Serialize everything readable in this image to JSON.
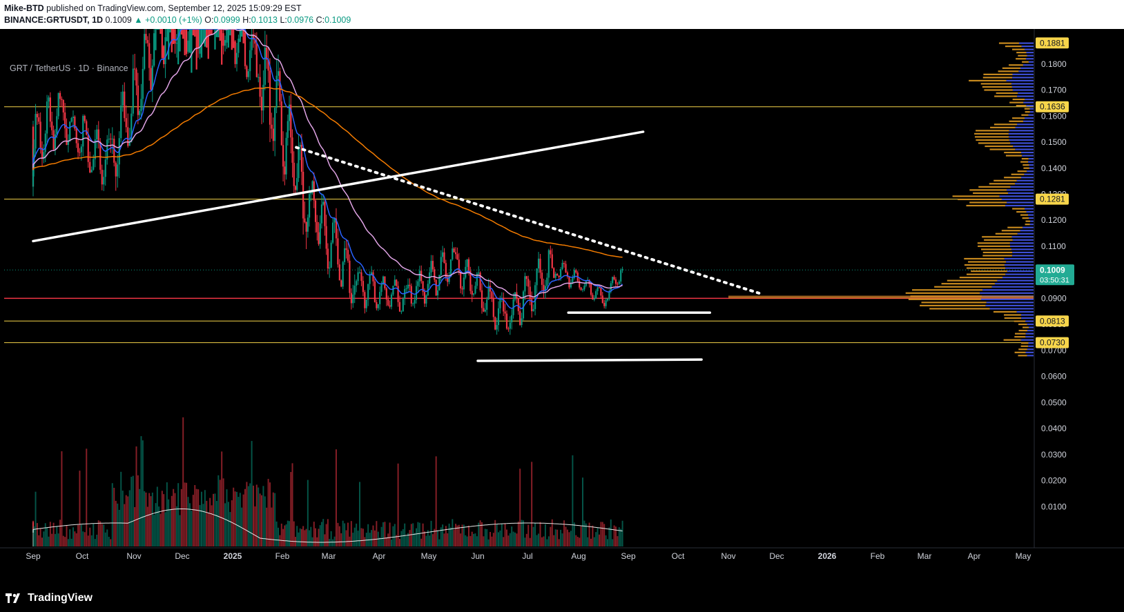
{
  "header": {
    "author": "Mike-BTD",
    "published_text": "published on TradingView.com, September 12, 2025 15:09:29 EST",
    "symbol": "BINANCE:GRTUSDT, 1D",
    "last": "0.1009",
    "change": "▲ +0.0010 (+1%)",
    "o_label": "O:",
    "o": "0.0999",
    "h_label": "H:",
    "h": "0.1013",
    "l_label": "L:",
    "l": "0.0976",
    "c_label": "C:",
    "c": "0.1009"
  },
  "pane_title": "GRT / TetherUS · 1D · Binance",
  "brand": "TradingView",
  "colors": {
    "up": "#089981",
    "down": "#f23645",
    "ema_fast": "#2962ff",
    "ema_mid": "#e1a4e6",
    "ma_slow": "#f57c00",
    "level_yellow": "#f7d54a",
    "level_red": "#f23645",
    "vp_left": "#c88a1e",
    "vp_right": "#3d4fd6",
    "badge_price": "#22ab94"
  },
  "chart_data": {
    "type": "candlestick",
    "symbol": "GRT / TetherUS",
    "interval": "1D",
    "exchange": "Binance",
    "y_axis": {
      "range": [
        0.0,
        0.19
      ],
      "ticks": [
        "0.1800",
        "0.1700",
        "0.1600",
        "0.1500",
        "0.1400",
        "0.1300",
        "0.1200",
        "0.1100",
        "0.1000",
        "0.0900",
        "0.0800",
        "0.0700",
        "0.0600",
        "0.0500",
        "0.0400",
        "0.0300",
        "0.0200",
        "0.0100"
      ]
    },
    "x_axis": {
      "labels": [
        "Sep",
        "Oct",
        "Nov",
        "Dec",
        "2025",
        "Feb",
        "Mar",
        "Apr",
        "May",
        "Jun",
        "Jul",
        "Aug",
        "Sep",
        "Oct",
        "Nov",
        "Dec",
        "2026",
        "Feb",
        "Mar",
        "Apr",
        "May"
      ]
    },
    "price_badges": [
      {
        "label": "0.1881",
        "value": 0.1881,
        "kind": "level"
      },
      {
        "label": "0.1636",
        "value": 0.1636,
        "kind": "level"
      },
      {
        "label": "0.1281",
        "value": 0.1281,
        "kind": "level"
      },
      {
        "label": "0.1009",
        "sublabel": "03:50:31",
        "value": 0.1009,
        "kind": "last"
      },
      {
        "label": "0.0813",
        "value": 0.0813,
        "kind": "level"
      },
      {
        "label": "0.0730",
        "value": 0.073,
        "kind": "level"
      }
    ],
    "horizontal_levels": [
      {
        "value": 0.1636,
        "color": "yellow"
      },
      {
        "value": 0.1281,
        "color": "yellow"
      },
      {
        "value": 0.09,
        "color": "red"
      },
      {
        "value": 0.0813,
        "color": "yellow"
      },
      {
        "value": 0.073,
        "color": "yellow"
      }
    ],
    "monthly_closes": [
      {
        "month": "Sep 2024",
        "open": 0.14,
        "high": 0.175,
        "low": 0.125,
        "close": 0.16
      },
      {
        "month": "Oct 2024",
        "open": 0.16,
        "high": 0.178,
        "low": 0.128,
        "close": 0.14
      },
      {
        "month": "Nov 2024",
        "open": 0.14,
        "high": 0.2,
        "low": 0.125,
        "close": 0.195
      },
      {
        "month": "Dec 2024",
        "open": 0.195,
        "high": 0.24,
        "low": 0.17,
        "close": 0.205
      },
      {
        "month": "Jan 2025",
        "open": 0.205,
        "high": 0.23,
        "low": 0.175,
        "close": 0.18
      },
      {
        "month": "Feb 2025",
        "open": 0.18,
        "high": 0.19,
        "low": 0.105,
        "close": 0.13
      },
      {
        "month": "Mar 2025",
        "open": 0.13,
        "high": 0.135,
        "low": 0.08,
        "close": 0.095
      },
      {
        "month": "Apr 2025",
        "open": 0.095,
        "high": 0.1,
        "low": 0.067,
        "close": 0.09
      },
      {
        "month": "May 2025",
        "open": 0.09,
        "high": 0.121,
        "low": 0.088,
        "close": 0.104
      },
      {
        "month": "Jun 2025",
        "open": 0.104,
        "high": 0.107,
        "low": 0.07,
        "close": 0.082
      },
      {
        "month": "Jul 2025",
        "open": 0.082,
        "high": 0.12,
        "low": 0.078,
        "close": 0.102
      },
      {
        "month": "Aug 2025",
        "open": 0.102,
        "high": 0.105,
        "low": 0.087,
        "close": 0.09
      },
      {
        "month": "Sep 2025",
        "open": 0.09,
        "high": 0.1013,
        "low": 0.087,
        "close": 0.1009
      }
    ],
    "trendlines": [
      {
        "style": "solid",
        "from": {
          "date": "2024-08-20",
          "price": 0.112
        },
        "to": {
          "date": "2025-09-10",
          "price": 0.154
        }
      },
      {
        "style": "dotted",
        "from": {
          "date": "2025-02-10",
          "price": 0.148
        },
        "to": {
          "date": "2025-11-20",
          "price": 0.092
        }
      },
      {
        "style": "solid",
        "from": {
          "date": "2025-07-25",
          "price": 0.0845
        },
        "to": {
          "date": "2025-10-20",
          "price": 0.0845
        }
      },
      {
        "style": "solid",
        "from": {
          "date": "2025-06-01",
          "price": 0.066
        },
        "to": {
          "date": "2025-10-15",
          "price": 0.0665
        }
      }
    ],
    "grid": false,
    "volume_profile": true
  }
}
